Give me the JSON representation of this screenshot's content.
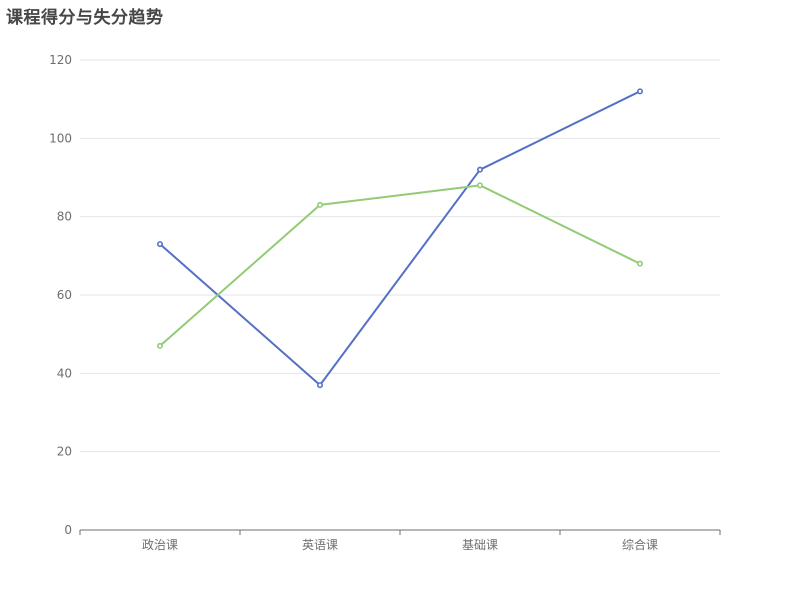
{
  "chart_data": {
    "type": "line",
    "title": "课程得分与失分趋势",
    "categories": [
      "政治课",
      "英语课",
      "基础课",
      "综合课"
    ],
    "series": [
      {
        "values": [
          73,
          37,
          92,
          112
        ],
        "color": "#5470c6"
      },
      {
        "values": [
          47,
          83,
          88,
          68
        ],
        "color": "#91cc75"
      }
    ],
    "ylim": [
      0,
      120
    ],
    "yticks": [
      0,
      20,
      40,
      60,
      80,
      100,
      120
    ],
    "grid": true
  }
}
